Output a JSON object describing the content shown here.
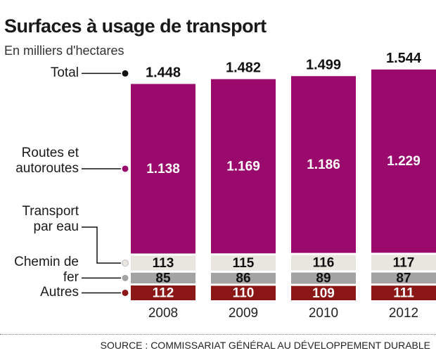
{
  "chart_data": {
    "type": "stacked_bar",
    "title": "Surfaces à usage de transport",
    "subtitle": "En milliers d'hectares",
    "source": "SOURCE : COMMISSARIAT GÉNÉRAL AU DÉVELOPPEMENT DURABLE",
    "categories": [
      "2008",
      "2009",
      "2010",
      "2012"
    ],
    "series": [
      {
        "name": "Autres",
        "color": "#8a1616",
        "values": [
          112,
          110,
          109,
          111
        ]
      },
      {
        "name": "Chemin de fer",
        "color": "#a3a3a3",
        "values": [
          85,
          86,
          89,
          87
        ]
      },
      {
        "name": "Transport par eau",
        "color": "#e9e6df",
        "values": [
          113,
          115,
          116,
          117
        ]
      },
      {
        "name": "Routes et autoroutes",
        "color": "#9a0a6c",
        "values": [
          1138,
          1169,
          1186,
          1229
        ],
        "value_labels": [
          "1.138",
          "1.169",
          "1.186",
          "1.229"
        ]
      }
    ],
    "total": {
      "name": "Total",
      "color": "#111111",
      "values": [
        1448,
        1482,
        1499,
        1544
      ],
      "value_labels": [
        "1.448",
        "1.482",
        "1.499",
        "1.544"
      ]
    }
  }
}
